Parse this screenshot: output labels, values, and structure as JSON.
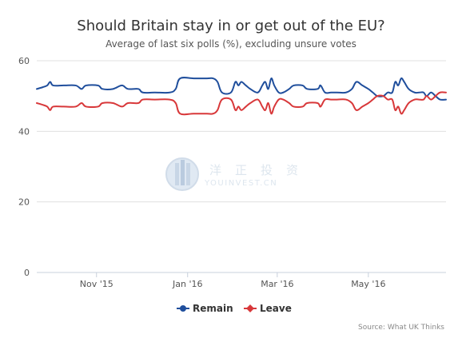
{
  "chart_data": {
    "type": "line",
    "title": "Should Britain stay in or get out of the EU?",
    "subtitle": "Average of last six polls (%), excluding unsure votes",
    "xlabel": "",
    "ylabel": "",
    "ylim": [
      0,
      60
    ],
    "yticks": [
      0,
      20,
      40,
      60
    ],
    "xlim": [
      "2015-09-22",
      "2016-06-22"
    ],
    "xticks": [
      {
        "date": "2015-11-01",
        "label": "Nov '15"
      },
      {
        "date": "2016-01-01",
        "label": "Jan '16"
      },
      {
        "date": "2016-03-01",
        "label": "Mar '16"
      },
      {
        "date": "2016-05-01",
        "label": "May '16"
      }
    ],
    "grid": true,
    "legend_position": "bottom-center",
    "series": [
      {
        "name": "Remain",
        "color": "#1f4e9c",
        "marker": "circle",
        "points": [
          [
            "2015-09-22",
            52
          ],
          [
            "2015-09-26",
            52.5
          ],
          [
            "2015-09-29",
            53
          ],
          [
            "2015-10-01",
            54
          ],
          [
            "2015-10-03",
            53
          ],
          [
            "2015-10-10",
            53
          ],
          [
            "2015-10-18",
            53
          ],
          [
            "2015-10-22",
            52
          ],
          [
            "2015-10-25",
            53
          ],
          [
            "2015-11-02",
            53
          ],
          [
            "2015-11-05",
            52
          ],
          [
            "2015-11-12",
            52
          ],
          [
            "2015-11-18",
            53
          ],
          [
            "2015-11-22",
            52
          ],
          [
            "2015-11-29",
            52
          ],
          [
            "2015-12-02",
            51
          ],
          [
            "2015-12-10",
            51
          ],
          [
            "2015-12-20",
            51
          ],
          [
            "2015-12-24",
            52
          ],
          [
            "2015-12-27",
            55
          ],
          [
            "2016-01-05",
            55
          ],
          [
            "2016-01-14",
            55
          ],
          [
            "2016-01-18",
            55
          ],
          [
            "2016-01-21",
            54
          ],
          [
            "2016-01-24",
            51
          ],
          [
            "2016-01-30",
            51
          ],
          [
            "2016-02-02",
            54
          ],
          [
            "2016-02-04",
            53
          ],
          [
            "2016-02-06",
            54
          ],
          [
            "2016-02-09",
            53
          ],
          [
            "2016-02-12",
            52
          ],
          [
            "2016-02-17",
            51
          ],
          [
            "2016-02-20",
            53
          ],
          [
            "2016-02-22",
            54
          ],
          [
            "2016-02-24",
            52
          ],
          [
            "2016-02-26",
            55
          ],
          [
            "2016-02-28",
            53
          ],
          [
            "2016-03-02",
            51
          ],
          [
            "2016-03-05",
            51
          ],
          [
            "2016-03-09",
            52
          ],
          [
            "2016-03-12",
            53
          ],
          [
            "2016-03-18",
            53
          ],
          [
            "2016-03-21",
            52
          ],
          [
            "2016-03-28",
            52
          ],
          [
            "2016-03-30",
            53
          ],
          [
            "2016-04-02",
            51
          ],
          [
            "2016-04-06",
            51
          ],
          [
            "2016-04-10",
            51
          ],
          [
            "2016-04-16",
            51
          ],
          [
            "2016-04-20",
            52
          ],
          [
            "2016-04-23",
            54
          ],
          [
            "2016-04-27",
            53
          ],
          [
            "2016-05-01",
            52
          ],
          [
            "2016-05-04",
            51
          ],
          [
            "2016-05-07",
            50
          ],
          [
            "2016-05-11",
            50
          ],
          [
            "2016-05-14",
            51
          ],
          [
            "2016-05-17",
            51
          ],
          [
            "2016-05-19",
            54
          ],
          [
            "2016-05-21",
            53
          ],
          [
            "2016-05-23",
            55
          ],
          [
            "2016-05-25",
            54
          ],
          [
            "2016-05-28",
            52
          ],
          [
            "2016-06-01",
            51
          ],
          [
            "2016-06-04",
            51
          ],
          [
            "2016-06-07",
            51
          ],
          [
            "2016-06-09",
            50
          ],
          [
            "2016-06-12",
            51
          ],
          [
            "2016-06-15",
            50
          ],
          [
            "2016-06-18",
            49
          ],
          [
            "2016-06-22",
            49
          ]
        ]
      },
      {
        "name": "Leave",
        "color": "#d8383a",
        "marker": "diamond",
        "points": [
          [
            "2015-09-22",
            48
          ],
          [
            "2015-09-26",
            47.5
          ],
          [
            "2015-09-29",
            47
          ],
          [
            "2015-10-01",
            46
          ],
          [
            "2015-10-03",
            47
          ],
          [
            "2015-10-10",
            47
          ],
          [
            "2015-10-18",
            47
          ],
          [
            "2015-10-22",
            48
          ],
          [
            "2015-10-25",
            47
          ],
          [
            "2015-11-02",
            47
          ],
          [
            "2015-11-05",
            48
          ],
          [
            "2015-11-12",
            48
          ],
          [
            "2015-11-18",
            47
          ],
          [
            "2015-11-22",
            48
          ],
          [
            "2015-11-29",
            48
          ],
          [
            "2015-12-02",
            49
          ],
          [
            "2015-12-10",
            49
          ],
          [
            "2015-12-20",
            49
          ],
          [
            "2015-12-24",
            48
          ],
          [
            "2015-12-27",
            45
          ],
          [
            "2016-01-05",
            45
          ],
          [
            "2016-01-14",
            45
          ],
          [
            "2016-01-18",
            45
          ],
          [
            "2016-01-21",
            46
          ],
          [
            "2016-01-24",
            49
          ],
          [
            "2016-01-30",
            49
          ],
          [
            "2016-02-02",
            46
          ],
          [
            "2016-02-04",
            47
          ],
          [
            "2016-02-06",
            46
          ],
          [
            "2016-02-09",
            47
          ],
          [
            "2016-02-12",
            48
          ],
          [
            "2016-02-17",
            49
          ],
          [
            "2016-02-20",
            47
          ],
          [
            "2016-02-22",
            46
          ],
          [
            "2016-02-24",
            48
          ],
          [
            "2016-02-26",
            45
          ],
          [
            "2016-02-28",
            47
          ],
          [
            "2016-03-02",
            49
          ],
          [
            "2016-03-05",
            49
          ],
          [
            "2016-03-09",
            48
          ],
          [
            "2016-03-12",
            47
          ],
          [
            "2016-03-18",
            47
          ],
          [
            "2016-03-21",
            48
          ],
          [
            "2016-03-28",
            48
          ],
          [
            "2016-03-30",
            47
          ],
          [
            "2016-04-02",
            49
          ],
          [
            "2016-04-06",
            49
          ],
          [
            "2016-04-10",
            49
          ],
          [
            "2016-04-16",
            49
          ],
          [
            "2016-04-20",
            48
          ],
          [
            "2016-04-23",
            46
          ],
          [
            "2016-04-27",
            47
          ],
          [
            "2016-05-01",
            48
          ],
          [
            "2016-05-04",
            49
          ],
          [
            "2016-05-07",
            50
          ],
          [
            "2016-05-11",
            50
          ],
          [
            "2016-05-14",
            49
          ],
          [
            "2016-05-17",
            49
          ],
          [
            "2016-05-19",
            46
          ],
          [
            "2016-05-21",
            47
          ],
          [
            "2016-05-23",
            45
          ],
          [
            "2016-05-25",
            46
          ],
          [
            "2016-05-28",
            48
          ],
          [
            "2016-06-01",
            49
          ],
          [
            "2016-06-04",
            49
          ],
          [
            "2016-06-07",
            49
          ],
          [
            "2016-06-09",
            50
          ],
          [
            "2016-06-12",
            49
          ],
          [
            "2016-06-15",
            50
          ],
          [
            "2016-06-18",
            51
          ],
          [
            "2016-06-22",
            51
          ]
        ]
      }
    ],
    "credit": "Source: What UK Thinks"
  },
  "watermark": {
    "characters": [
      "洋",
      "正",
      "投",
      "资"
    ],
    "latin": "YOUINVEST.CN",
    "logo_icon": "building-columns-icon"
  }
}
